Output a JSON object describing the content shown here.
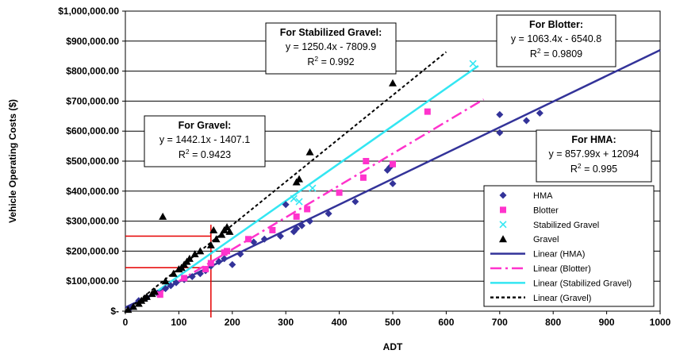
{
  "chart_data": {
    "type": "scatter",
    "xlabel": "ADT",
    "ylabel": "Vehicle Operating Costs ($)",
    "xlim": [
      0,
      1000
    ],
    "ylim": [
      0,
      1000000
    ],
    "x_ticks": [
      0,
      100,
      200,
      300,
      400,
      500,
      600,
      700,
      800,
      900,
      1000
    ],
    "x_tick_labels": [
      "0",
      "100",
      "200",
      "300",
      "400",
      "500",
      "600",
      "700",
      "800",
      "900",
      "1000"
    ],
    "y_ticks": [
      0,
      100000,
      200000,
      300000,
      400000,
      500000,
      600000,
      700000,
      800000,
      900000,
      1000000
    ],
    "y_tick_labels": [
      "$-",
      "$100,000.00",
      "$200,000.00",
      "$300,000.00",
      "$400,000.00",
      "$500,000.00",
      "$600,000.00",
      "$700,000.00",
      "$800,000.00",
      "$900,000.00",
      "$1,000,000.00"
    ],
    "grid": "horizontal",
    "legend_position": "bottom-right",
    "colors": {
      "hma": "#333399",
      "blotter": "#ff33cc",
      "stabilized_gravel": "#33e6f2",
      "gravel": "#000000",
      "reference_lines": "#e60000"
    },
    "series": [
      {
        "name": "HMA",
        "marker": "diamond",
        "color": "#333399",
        "points": [
          [
            10,
            12000
          ],
          [
            25,
            35000
          ],
          [
            40,
            45000
          ],
          [
            60,
            60000
          ],
          [
            75,
            75000
          ],
          [
            85,
            85000
          ],
          [
            95,
            95000
          ],
          [
            110,
            105000
          ],
          [
            125,
            115000
          ],
          [
            140,
            125000
          ],
          [
            150,
            135000
          ],
          [
            160,
            150000
          ],
          [
            175,
            165000
          ],
          [
            185,
            175000
          ],
          [
            200,
            155000
          ],
          [
            215,
            190000
          ],
          [
            240,
            230000
          ],
          [
            260,
            240000
          ],
          [
            290,
            250000
          ],
          [
            300,
            355000
          ],
          [
            315,
            265000
          ],
          [
            320,
            275000
          ],
          [
            330,
            285000
          ],
          [
            345,
            300000
          ],
          [
            380,
            325000
          ],
          [
            430,
            365000
          ],
          [
            490,
            470000
          ],
          [
            495,
            480000
          ],
          [
            500,
            425000
          ],
          [
            700,
            655000
          ],
          [
            700,
            595000
          ],
          [
            750,
            635000
          ],
          [
            775,
            660000
          ]
        ]
      },
      {
        "name": "Blotter",
        "marker": "square",
        "color": "#ff33cc",
        "points": [
          [
            65,
            55000
          ],
          [
            110,
            110000
          ],
          [
            150,
            140000
          ],
          [
            160,
            160000
          ],
          [
            185,
            195000
          ],
          [
            190,
            200000
          ],
          [
            230,
            240000
          ],
          [
            275,
            270000
          ],
          [
            320,
            315000
          ],
          [
            340,
            340000
          ],
          [
            400,
            395000
          ],
          [
            445,
            445000
          ],
          [
            450,
            500000
          ],
          [
            500,
            490000
          ],
          [
            565,
            665000
          ]
        ]
      },
      {
        "name": "Stabilized Gravel",
        "marker": "x",
        "color": "#33e6f2",
        "points": [
          [
            315,
            375000
          ],
          [
            325,
            365000
          ],
          [
            350,
            410000
          ],
          [
            650,
            825000
          ]
        ]
      },
      {
        "name": "Gravel",
        "marker": "triangle",
        "color": "#000000",
        "points": [
          [
            5,
            5000
          ],
          [
            15,
            15000
          ],
          [
            25,
            25000
          ],
          [
            30,
            35000
          ],
          [
            35,
            42000
          ],
          [
            40,
            48000
          ],
          [
            50,
            58000
          ],
          [
            55,
            65000
          ],
          [
            70,
            315000
          ],
          [
            75,
            100000
          ],
          [
            90,
            125000
          ],
          [
            100,
            140000
          ],
          [
            105,
            145000
          ],
          [
            110,
            155000
          ],
          [
            115,
            165000
          ],
          [
            120,
            175000
          ],
          [
            130,
            190000
          ],
          [
            140,
            200000
          ],
          [
            160,
            220000
          ],
          [
            165,
            270000
          ],
          [
            170,
            240000
          ],
          [
            180,
            255000
          ],
          [
            185,
            270000
          ],
          [
            190,
            280000
          ],
          [
            195,
            265000
          ],
          [
            320,
            430000
          ],
          [
            325,
            440000
          ],
          [
            345,
            530000
          ],
          [
            500,
            760000
          ]
        ]
      }
    ],
    "trendlines": [
      {
        "name": "Linear (HMA)",
        "color": "#333399",
        "dash": "solid",
        "slope": 857.99,
        "intercept": 12094,
        "x_range": [
          0,
          1000
        ]
      },
      {
        "name": "Linear (Blotter)",
        "color": "#ff33cc",
        "dash": "longdash",
        "slope": 1063.4,
        "intercept": -6540.8,
        "x_range": [
          60,
          670
        ]
      },
      {
        "name": "Linear (Stabilized Gravel)",
        "color": "#33e6f2",
        "dash": "solid",
        "slope": 1250.4,
        "intercept": -7809.9,
        "x_range": [
          60,
          660
        ]
      },
      {
        "name": "Linear (Gravel)",
        "color": "#000000",
        "dash": "dotted",
        "slope": 1442.1,
        "intercept": -1407.1,
        "x_range": [
          0,
          600
        ]
      }
    ],
    "annotations": [
      {
        "title": "For Stabilized Gravel:",
        "equation": "y = 1250.4x - 7809.9",
        "r2_label": "R",
        "r2_sup": "2",
        "r2_value": " = 0.992"
      },
      {
        "title": "For Blotter:",
        "equation": "y = 1063.4x - 6540.8",
        "r2_label": "R",
        "r2_sup": "2",
        "r2_value": " = 0.9809"
      },
      {
        "title": "For Gravel:",
        "equation": "y = 1442.1x - 1407.1",
        "r2_label": "R",
        "r2_sup": "2",
        "r2_value": " = 0.9423"
      },
      {
        "title": "For HMA:",
        "equation": "y = 857.99x + 12094",
        "r2_label": "R",
        "r2_sup": "2",
        "r2_value": " = 0.995"
      }
    ],
    "reference_lines": {
      "vertical_x": 160,
      "horizontal_y": [
        250000,
        145000
      ]
    }
  }
}
